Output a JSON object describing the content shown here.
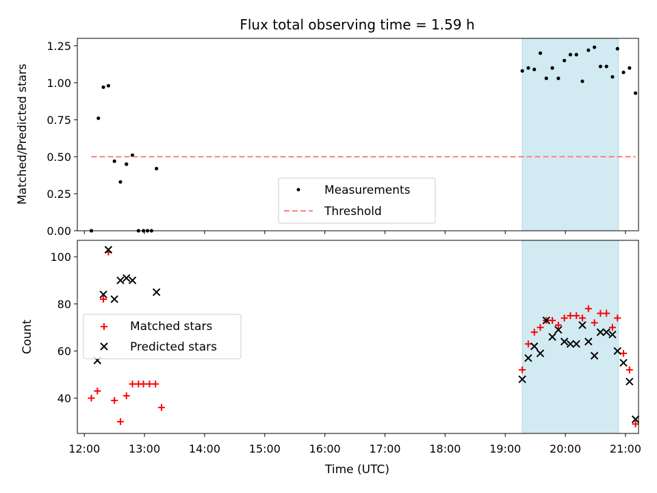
{
  "figure": {
    "title": "Flux total observing time = 1.59 h",
    "xlabel": "Time (UTC)",
    "x_tick_labels": [
      "12:00",
      "13:00",
      "14:00",
      "15:00",
      "16:00",
      "17:00",
      "18:00",
      "19:00",
      "20:00",
      "21:00"
    ]
  },
  "colors": {
    "measurement": "#000000",
    "threshold": "#ff7f7f",
    "matched": "#ff0000",
    "predicted": "#000000",
    "window_fill": "#add8e6"
  },
  "chart_data": [
    {
      "type": "scatter",
      "ylabel": "Matched/Predicted stars",
      "xlim": [
        "11:53",
        "21:13"
      ],
      "ylim": [
        0,
        1.3
      ],
      "y_ticks": [
        0,
        0.25,
        0.5,
        0.75,
        1.0,
        1.25
      ],
      "y_tick_labels": [
        "0.00",
        "0.25",
        "0.50",
        "0.75",
        "1.00",
        "1.25"
      ],
      "highlight_window": [
        "19:17",
        "20:53"
      ],
      "legend": {
        "placement": "lower-center",
        "entries": [
          "Measurements",
          "Threshold"
        ]
      },
      "series": [
        {
          "name": "Measurements",
          "marker": "dot",
          "points": [
            [
              "12:07",
              0.0
            ],
            [
              "12:14",
              0.76
            ],
            [
              "12:19",
              0.97
            ],
            [
              "12:24",
              0.98
            ],
            [
              "12:30",
              0.47
            ],
            [
              "12:36",
              0.33
            ],
            [
              "12:42",
              0.45
            ],
            [
              "12:48",
              0.51
            ],
            [
              "12:54",
              0.0
            ],
            [
              "12:59",
              0.0
            ],
            [
              "13:03",
              0.0
            ],
            [
              "13:07",
              0.0
            ],
            [
              "13:12",
              0.42
            ],
            [
              "19:17",
              1.08
            ],
            [
              "19:23",
              1.1
            ],
            [
              "19:29",
              1.09
            ],
            [
              "19:35",
              1.2
            ],
            [
              "19:41",
              1.03
            ],
            [
              "19:47",
              1.1
            ],
            [
              "19:53",
              1.03
            ],
            [
              "19:59",
              1.15
            ],
            [
              "20:05",
              1.19
            ],
            [
              "20:11",
              1.19
            ],
            [
              "20:17",
              1.01
            ],
            [
              "20:23",
              1.22
            ],
            [
              "20:29",
              1.24
            ],
            [
              "20:35",
              1.11
            ],
            [
              "20:41",
              1.11
            ],
            [
              "20:47",
              1.04
            ],
            [
              "20:52",
              1.23
            ],
            [
              "20:58",
              1.07
            ],
            [
              "21:04",
              1.1
            ],
            [
              "21:10",
              0.93
            ]
          ]
        },
        {
          "name": "Threshold",
          "style": "dashed",
          "points": [
            [
              "12:07",
              0.5
            ],
            [
              "21:10",
              0.5
            ]
          ]
        }
      ]
    },
    {
      "type": "scatter",
      "ylabel": "Count",
      "xlim": [
        "11:53",
        "21:13"
      ],
      "ylim": [
        25,
        107
      ],
      "y_ticks": [
        40,
        60,
        80,
        100
      ],
      "y_tick_labels": [
        "40",
        "60",
        "80",
        "100"
      ],
      "highlight_window": [
        "19:17",
        "20:53"
      ],
      "legend": {
        "placement": "center-left",
        "entries": [
          "Matched stars",
          "Predicted stars"
        ]
      },
      "series": [
        {
          "name": "Matched stars",
          "marker": "plus",
          "points": [
            [
              "12:07",
              40
            ],
            [
              "12:13",
              43
            ],
            [
              "12:19",
              82
            ],
            [
              "12:24",
              102
            ],
            [
              "12:30",
              39
            ],
            [
              "12:36",
              30
            ],
            [
              "12:42",
              41
            ],
            [
              "12:48",
              46
            ],
            [
              "12:54",
              46
            ],
            [
              "12:59",
              46
            ],
            [
              "13:05",
              46
            ],
            [
              "13:11",
              46
            ],
            [
              "13:17",
              36
            ],
            [
              "19:17",
              52
            ],
            [
              "19:23",
              63
            ],
            [
              "19:29",
              68
            ],
            [
              "19:35",
              70
            ],
            [
              "19:41",
              73
            ],
            [
              "19:47",
              73
            ],
            [
              "19:53",
              71
            ],
            [
              "19:59",
              74
            ],
            [
              "20:05",
              75
            ],
            [
              "20:11",
              75
            ],
            [
              "20:17",
              74
            ],
            [
              "20:23",
              78
            ],
            [
              "20:29",
              72
            ],
            [
              "20:35",
              76
            ],
            [
              "20:41",
              76
            ],
            [
              "20:47",
              70
            ],
            [
              "20:52",
              74
            ],
            [
              "20:58",
              59
            ],
            [
              "21:04",
              52
            ],
            [
              "21:10",
              29
            ]
          ]
        },
        {
          "name": "Predicted stars",
          "marker": "x",
          "points": [
            [
              "12:13",
              56
            ],
            [
              "12:19",
              84
            ],
            [
              "12:24",
              103
            ],
            [
              "12:30",
              82
            ],
            [
              "12:36",
              90
            ],
            [
              "12:42",
              91
            ],
            [
              "12:48",
              90
            ],
            [
              "13:12",
              85
            ],
            [
              "19:17",
              48
            ],
            [
              "19:23",
              57
            ],
            [
              "19:29",
              62
            ],
            [
              "19:35",
              59
            ],
            [
              "19:41",
              73
            ],
            [
              "19:47",
              66
            ],
            [
              "19:53",
              69
            ],
            [
              "19:59",
              64
            ],
            [
              "20:05",
              63
            ],
            [
              "20:11",
              63
            ],
            [
              "20:17",
              71
            ],
            [
              "20:23",
              64
            ],
            [
              "20:29",
              58
            ],
            [
              "20:35",
              68
            ],
            [
              "20:41",
              68
            ],
            [
              "20:47",
              67
            ],
            [
              "20:52",
              60
            ],
            [
              "20:58",
              55
            ],
            [
              "21:04",
              47
            ],
            [
              "21:10",
              31
            ]
          ]
        }
      ]
    }
  ]
}
